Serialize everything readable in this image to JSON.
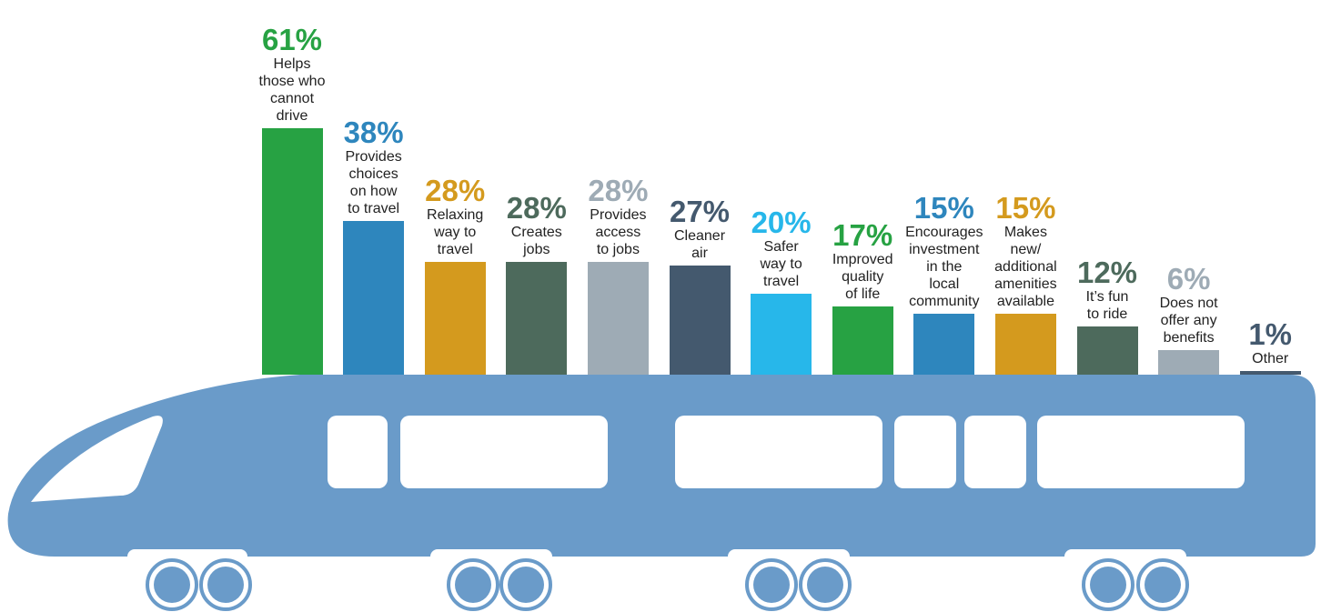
{
  "chart_data": {
    "type": "bar",
    "categories": [
      "Helps\nthose who\ncannot\ndrive",
      "Provides\nchoices\non how\nto travel",
      "Relaxing\nway to\ntravel",
      "Creates\njobs",
      "Provides\naccess\nto jobs",
      "Cleaner\nair",
      "Safer\nway to\ntravel",
      "Improved\nquality\nof life",
      "Encourages\ninvestment\nin the\nlocal\ncommunity",
      "Makes\nnew/\nadditional\namenities\navailable",
      "It’s fun\nto ride",
      "Does not\noffer any\nbenefits",
      "Other"
    ],
    "values": [
      61,
      38,
      28,
      28,
      28,
      27,
      20,
      17,
      15,
      15,
      12,
      6,
      1
    ],
    "value_labels": [
      "61%",
      "38%",
      "28%",
      "28%",
      "28%",
      "27%",
      "20%",
      "17%",
      "15%",
      "15%",
      "12%",
      "6%",
      "1%"
    ],
    "colors": [
      "#27a243",
      "#2e86bd",
      "#d49a1e",
      "#4d6a5c",
      "#9eabb5",
      "#44596e",
      "#27b7ea",
      "#27a243",
      "#2e86bd",
      "#d49a1e",
      "#4d6a5c",
      "#9eabb5",
      "#44596e"
    ]
  }
}
